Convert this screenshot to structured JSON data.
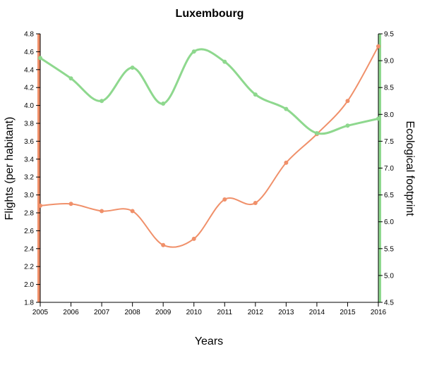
{
  "chart_data": {
    "type": "line",
    "title": "Luxembourg",
    "xlabel": "Years",
    "ylabel_left": "Flights (per habitant)",
    "ylabel_right": "Ecological footprint",
    "x": [
      2005,
      2006,
      2007,
      2008,
      2009,
      2010,
      2011,
      2012,
      2013,
      2014,
      2015,
      2016
    ],
    "ylim_left": [
      1.8,
      4.8
    ],
    "ylim_right": [
      4.5,
      9.5
    ],
    "yticks_left": [
      1.8,
      2.0,
      2.2,
      2.4,
      2.6,
      2.8,
      3.0,
      3.2,
      3.4,
      3.6,
      3.8,
      4.0,
      4.2,
      4.4,
      4.6,
      4.8
    ],
    "yticks_right": [
      4.5,
      5.0,
      5.5,
      6.0,
      6.5,
      7.0,
      7.5,
      8.0,
      8.5,
      9.0,
      9.5
    ],
    "series": [
      {
        "axis": "left",
        "color": "#f0906a",
        "values": [
          2.88,
          2.9,
          2.82,
          2.82,
          2.44,
          2.51,
          2.95,
          2.91,
          3.36,
          3.68,
          4.05,
          4.66
        ]
      },
      {
        "axis": "right",
        "color": "#8ed88e",
        "values": [
          9.05,
          8.67,
          8.25,
          8.87,
          8.2,
          9.17,
          8.98,
          8.37,
          8.1,
          7.65,
          7.79,
          7.92
        ]
      }
    ],
    "left_axis_color": "#f0906a",
    "right_axis_color": "#8ed88e",
    "grid": false
  }
}
